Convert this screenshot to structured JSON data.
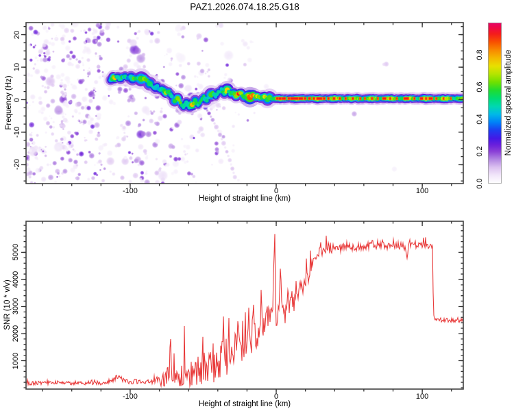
{
  "title": "PAZ1.2026.074.18.25.G18",
  "background": "#ffffff",
  "chart_data": [
    {
      "type": "heatmap",
      "name": "occultation-spectrogram",
      "xlabel": "Height of straight line (km)",
      "ylabel": "Frequency (Hz)",
      "xlim": [
        -171.3,
        128.1
      ],
      "ylim": [
        -25.8,
        23.7
      ],
      "xticks": {
        "major": [
          -100,
          0,
          100
        ],
        "labels": [
          "-100",
          "0",
          "100"
        ],
        "minor_step": 20
      },
      "yticks": {
        "major": [
          -20,
          -10,
          0,
          10,
          20
        ],
        "labels": [
          "-20",
          "-10",
          "0",
          "10",
          "20"
        ],
        "minor_step": 2.5
      },
      "colorbar": {
        "label": "Normalized spectral amplitude",
        "range": [
          0,
          1
        ],
        "ticks": [
          0,
          0.2,
          0.4,
          0.6,
          0.8
        ],
        "tick_labels": [
          "0.0",
          "0.2",
          "0.4",
          "0.6",
          "0.8"
        ],
        "colormap": [
          [
            0.0,
            "#ffffff"
          ],
          [
            0.05,
            "#f2e8fa"
          ],
          [
            0.1,
            "#dcc2f0"
          ],
          [
            0.15,
            "#b387e2"
          ],
          [
            0.2,
            "#8a3fd6"
          ],
          [
            0.24,
            "#6a20dc"
          ],
          [
            0.28,
            "#4418e6"
          ],
          [
            0.33,
            "#1e3cf0"
          ],
          [
            0.38,
            "#0080f8"
          ],
          [
            0.43,
            "#00b8e8"
          ],
          [
            0.48,
            "#00d8b0"
          ],
          [
            0.53,
            "#00dc70"
          ],
          [
            0.58,
            "#20dc30"
          ],
          [
            0.63,
            "#70e000"
          ],
          [
            0.68,
            "#b4e400"
          ],
          [
            0.73,
            "#e8e000"
          ],
          [
            0.78,
            "#f4b800"
          ],
          [
            0.83,
            "#f88800"
          ],
          [
            0.88,
            "#f85000"
          ],
          [
            0.93,
            "#f41c1c"
          ],
          [
            0.97,
            "#ee0848"
          ],
          [
            1.0,
            "#e60468"
          ]
        ]
      },
      "ridge_track": [
        [
          -113.5,
          6.2,
          0.5
        ],
        [
          -111.5,
          6.8,
          0.75
        ],
        [
          -109.5,
          6.9,
          0.6
        ],
        [
          -107.5,
          6.4,
          0.45
        ],
        [
          -105.5,
          6.7,
          0.5
        ],
        [
          -103.5,
          6.9,
          0.45
        ],
        [
          -101.5,
          6.5,
          0.42
        ],
        [
          -99.5,
          6.9,
          0.5
        ],
        [
          -97.5,
          6.5,
          0.55
        ],
        [
          -95.5,
          6.8,
          0.5
        ],
        [
          -93.5,
          6.4,
          0.62
        ],
        [
          -91.5,
          6.7,
          0.55
        ],
        [
          -89.5,
          6.1,
          0.68
        ],
        [
          -87.5,
          5.5,
          0.5
        ],
        [
          -85.5,
          4.6,
          0.45
        ],
        [
          -83.5,
          3.6,
          0.52
        ],
        [
          -81.5,
          4.2,
          0.45
        ],
        [
          -79.5,
          2.9,
          0.5
        ],
        [
          -77.5,
          3.3,
          0.55
        ],
        [
          -75.5,
          1.9,
          0.72
        ],
        [
          -73.5,
          2.5,
          0.5
        ],
        [
          -71.5,
          1,
          0.45
        ],
        [
          -69.5,
          -0.5,
          0.5
        ],
        [
          -67.5,
          0.4,
          0.75
        ],
        [
          -65.5,
          -1.2,
          0.6
        ],
        [
          -63.5,
          -2.2,
          0.5
        ],
        [
          -61.5,
          -0.9,
          0.55
        ],
        [
          -59.5,
          -2.6,
          0.5
        ],
        [
          -57.5,
          -1.3,
          0.8
        ],
        [
          -55.5,
          -0.4,
          0.6
        ],
        [
          -53.5,
          -1.8,
          0.52
        ],
        [
          -51.5,
          -0.3,
          0.55
        ],
        [
          -49.5,
          0.9,
          0.5
        ],
        [
          -47.5,
          -0.3,
          0.47
        ],
        [
          -45.5,
          1.2,
          0.5
        ],
        [
          -43.5,
          2.2,
          0.55
        ],
        [
          -41.5,
          1,
          0.5
        ],
        [
          -39.5,
          2.3,
          0.47
        ],
        [
          -37.5,
          3.2,
          0.52
        ],
        [
          -35.5,
          1.9,
          0.55
        ],
        [
          -33.5,
          2.9,
          0.65
        ],
        [
          -31.5,
          1.6,
          0.52
        ],
        [
          -29.5,
          2.4,
          0.55
        ],
        [
          -27.5,
          1.2,
          0.7
        ],
        [
          -25.8,
          1.9,
          0.9
        ],
        [
          -24,
          2,
          0.6
        ],
        [
          -22,
          0.7,
          0.55
        ],
        [
          -20,
          1.5,
          0.62
        ],
        [
          -18,
          0.6,
          0.9
        ],
        [
          -16,
          1.4,
          0.85
        ],
        [
          -14,
          0.6,
          0.6
        ],
        [
          -12,
          1.1,
          0.7
        ],
        [
          -10,
          0.4,
          0.62
        ],
        [
          -8,
          0.8,
          0.66
        ],
        [
          -6,
          0.3,
          0.6
        ],
        [
          -4.5,
          0.7,
          0.62
        ],
        [
          -3,
          0.4,
          0.68
        ]
      ],
      "carrier_band": {
        "start_km": -3,
        "end_km": 128.1,
        "freq_hz": 0.35,
        "base_amp": 0.55,
        "red_dashes": [
          [
            0.8,
            1.4
          ],
          [
            2.6,
            1.8
          ],
          [
            5.2,
            2.4
          ],
          [
            8.8,
            1.4
          ],
          [
            12.5,
            5.5
          ],
          [
            16.8,
            2.8
          ],
          [
            19.8,
            1.2
          ],
          [
            22.8,
            1.4
          ],
          [
            25.8,
            1.2
          ],
          [
            29.5,
            3.6
          ],
          [
            32.8,
            1.4
          ],
          [
            35.8,
            1
          ],
          [
            39.6,
            1.2
          ],
          [
            43.6,
            1
          ],
          [
            47.6,
            0.9
          ],
          [
            52.5,
            1
          ],
          [
            57.5,
            0.8
          ],
          [
            60.8,
            0.7
          ],
          [
            65.6,
            0.8
          ],
          [
            69.6,
            0.7
          ],
          [
            74,
            2.2
          ],
          [
            78,
            0.8
          ],
          [
            82.6,
            0.7
          ],
          [
            89,
            3.2
          ],
          [
            94.6,
            0.8
          ],
          [
            99.5,
            1.8
          ],
          [
            102.6,
            0.9
          ],
          [
            105.8,
            2.4
          ],
          [
            109.6,
            0.7
          ],
          [
            114.6,
            0.6
          ],
          [
            119.6,
            0.5
          ]
        ]
      },
      "descent_tail": [
        [
          -51,
          -0.8,
          0.3
        ],
        [
          -48.5,
          -2.4,
          0.26
        ],
        [
          -46,
          -4.2,
          0.2
        ],
        [
          -43.5,
          -6.2,
          0.14
        ],
        [
          -41,
          -8.4,
          0.1
        ],
        [
          -38.5,
          -10.8,
          0.12
        ],
        [
          -36,
          -13.4,
          0.09
        ],
        [
          -33.8,
          -16,
          0.11
        ],
        [
          -31.8,
          -18.6,
          0.08
        ],
        [
          -30,
          -21.2,
          0.1
        ],
        [
          -28.3,
          -23.8,
          0.08
        ]
      ],
      "noise": {
        "seed": 11,
        "blob_attempts": 1700,
        "amp_max": 0.24,
        "density_profile": [
          [
            -171.3,
            0.95
          ],
          [
            -140,
            0.95
          ],
          [
            -122,
            0.92
          ],
          [
            -116,
            0.6
          ],
          [
            -113,
            0.3
          ],
          [
            -110,
            0.45
          ],
          [
            -106,
            0.75
          ],
          [
            -96,
            0.78
          ],
          [
            -88,
            0.62
          ],
          [
            -80,
            0.58
          ],
          [
            -70,
            0.52
          ],
          [
            -60,
            0.48
          ],
          [
            -50,
            0.38
          ],
          [
            -42,
            0.28
          ],
          [
            -35,
            0.2
          ],
          [
            -28,
            0.14
          ],
          [
            -20,
            0.09
          ],
          [
            -12,
            0.06
          ],
          [
            -5,
            0.035
          ],
          [
            0,
            0.02
          ],
          [
            15,
            0.012
          ],
          [
            60,
            0.01
          ],
          [
            128.1,
            0.01
          ]
        ]
      }
    },
    {
      "type": "line",
      "name": "snr-profile",
      "xlabel": "Height of straight line (km)",
      "ylabel": "SNR (10 * v/v)",
      "line_color": "#e83a3a",
      "xlim": [
        -171.3,
        128.1
      ],
      "ylim": [
        -50,
        6150
      ],
      "xticks": {
        "major": [
          -100,
          0,
          100
        ],
        "labels": [
          "-100",
          "0",
          "100"
        ],
        "minor_step": 20
      },
      "yticks": {
        "major": [
          1000,
          2000,
          3000,
          4000,
          5000
        ],
        "labels": [
          "1000",
          "2000",
          "3000",
          "4000",
          "5000"
        ],
        "minor_step": 200
      },
      "seed": 101,
      "envelope_base_spike": [
        [
          -171.3,
          170,
          140
        ],
        [
          -150,
          170,
          140
        ],
        [
          -130,
          175,
          140
        ],
        [
          -116,
          180,
          140
        ],
        [
          -111,
          300,
          180
        ],
        [
          -108,
          430,
          170
        ],
        [
          -105,
          280,
          150
        ],
        [
          -101,
          215,
          140
        ],
        [
          -96,
          205,
          140
        ],
        [
          -91,
          215,
          150
        ],
        [
          -86,
          225,
          170
        ],
        [
          -82,
          245,
          350
        ],
        [
          -79,
          280,
          1400
        ],
        [
          -76,
          300,
          2100
        ],
        [
          -73,
          285,
          1700
        ],
        [
          -70,
          300,
          1300
        ],
        [
          -67,
          320,
          2100
        ],
        [
          -64,
          345,
          2100
        ],
        [
          -61,
          350,
          1500
        ],
        [
          -58,
          400,
          2000
        ],
        [
          -55,
          450,
          2000
        ],
        [
          -52,
          500,
          1900
        ],
        [
          -49,
          600,
          2500
        ],
        [
          -46,
          700,
          2700
        ],
        [
          -43,
          800,
          2900
        ],
        [
          -40,
          820,
          2700
        ],
        [
          -37,
          900,
          2600
        ],
        [
          -34,
          1000,
          2600
        ],
        [
          -31,
          1100,
          3000
        ],
        [
          -28,
          1300,
          3100
        ],
        [
          -25,
          1400,
          2900
        ],
        [
          -22,
          1500,
          2700
        ],
        [
          -19,
          1700,
          2600
        ],
        [
          -16,
          1850,
          2400
        ],
        [
          -13,
          2000,
          2200
        ],
        [
          -10,
          2200,
          2000
        ],
        [
          -7,
          2450,
          1600
        ],
        [
          -4,
          2700,
          1400
        ],
        [
          -2.2,
          3100,
          1500
        ],
        [
          -1,
          5950,
          100
        ],
        [
          -0.3,
          2350,
          300
        ],
        [
          1,
          2450,
          600
        ],
        [
          2.2,
          3100,
          1500
        ],
        [
          2.8,
          4450,
          200
        ],
        [
          3.6,
          3400,
          900
        ],
        [
          5,
          2750,
          1300
        ],
        [
          6.5,
          2550,
          1800
        ],
        [
          8,
          3000,
          1400
        ],
        [
          10,
          3200,
          1300
        ],
        [
          12,
          3050,
          1500
        ],
        [
          14,
          3300,
          1300
        ],
        [
          16,
          3600,
          1100
        ],
        [
          18,
          3700,
          1100
        ],
        [
          20,
          3900,
          1000
        ],
        [
          22,
          4100,
          900
        ],
        [
          24,
          4400,
          800
        ],
        [
          26,
          4650,
          700
        ],
        [
          28,
          4850,
          600
        ],
        [
          30,
          5000,
          550
        ],
        [
          33,
          5050,
          600
        ],
        [
          36,
          5100,
          600
        ],
        [
          40,
          5150,
          500
        ],
        [
          44,
          5150,
          550
        ],
        [
          48,
          5200,
          480
        ],
        [
          52,
          5150,
          500
        ],
        [
          56,
          5200,
          420
        ],
        [
          60,
          5200,
          420
        ],
        [
          64,
          5250,
          380
        ],
        [
          68,
          5200,
          400
        ],
        [
          72,
          5250,
          360
        ],
        [
          76,
          5200,
          360
        ],
        [
          80,
          5250,
          320
        ],
        [
          84,
          5200,
          340
        ],
        [
          87,
          5250,
          300
        ],
        [
          89.5,
          4800,
          500
        ],
        [
          91,
          5350,
          400
        ],
        [
          93,
          5250,
          320
        ],
        [
          96,
          5250,
          300
        ],
        [
          100,
          5250,
          300
        ],
        [
          103,
          5200,
          300
        ],
        [
          105,
          5250,
          250
        ],
        [
          107,
          5230,
          200
        ],
        [
          107.7,
          2600,
          120
        ],
        [
          110,
          2520,
          150
        ],
        [
          114,
          2490,
          150
        ],
        [
          118,
          2500,
          150
        ],
        [
          122,
          2470,
          160
        ],
        [
          125,
          2450,
          170
        ],
        [
          128.1,
          2480,
          160
        ]
      ]
    }
  ]
}
